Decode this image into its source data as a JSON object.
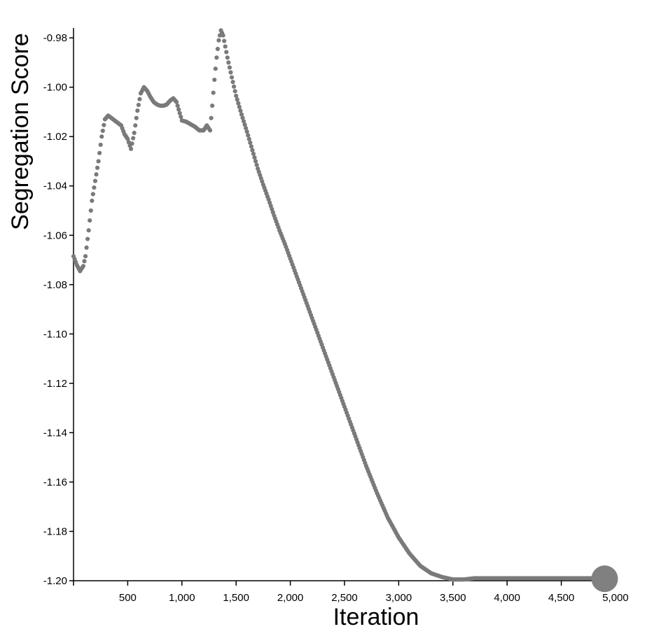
{
  "chart_data": {
    "type": "scatter",
    "title": "",
    "xlabel": "Iteration",
    "ylabel": "Segregation Score",
    "xlim": [
      0,
      5000
    ],
    "ylim": [
      -1.2,
      -0.976
    ],
    "xticks": [
      500,
      1000,
      1500,
      2000,
      2500,
      3000,
      3500,
      4000,
      4500,
      5000
    ],
    "xtick_labels": [
      "500",
      "1,000",
      "1,500",
      "2,000",
      "2,500",
      "3,000",
      "3,500",
      "4,000",
      "4,500",
      "5,000"
    ],
    "yticks": [
      -0.98,
      -1.0,
      -1.02,
      -1.04,
      -1.06,
      -1.08,
      -1.1,
      -1.12,
      -1.14,
      -1.16,
      -1.18,
      -1.2
    ],
    "ytick_labels": [
      "-0.98",
      "-1.00",
      "-1.02",
      "-1.04",
      "-1.06",
      "-1.08",
      "-1.10",
      "-1.12",
      "-1.14",
      "-1.16",
      "-1.18",
      "-1.20"
    ],
    "grid": false,
    "point_color": "#7a7a7a",
    "series": [
      {
        "points": [
          [
            0,
            -1.0685
          ],
          [
            30,
            -1.072
          ],
          [
            60,
            -1.0745
          ],
          [
            90,
            -1.0725
          ],
          [
            110,
            -1.0685
          ],
          [
            140,
            -1.058
          ],
          [
            170,
            -1.046
          ],
          [
            200,
            -1.038
          ],
          [
            230,
            -1.03
          ],
          [
            260,
            -1.02
          ],
          [
            290,
            -1.013
          ],
          [
            320,
            -1.0115
          ],
          [
            350,
            -1.0125
          ],
          [
            380,
            -1.0135
          ],
          [
            410,
            -1.0145
          ],
          [
            440,
            -1.0155
          ],
          [
            470,
            -1.019
          ],
          [
            500,
            -1.021
          ],
          [
            530,
            -1.025
          ],
          [
            560,
            -1.0185
          ],
          [
            590,
            -1.0095
          ],
          [
            620,
            -1.0025
          ],
          [
            650,
            -1.0
          ],
          [
            680,
            -1.0015
          ],
          [
            710,
            -1.004
          ],
          [
            740,
            -1.006
          ],
          [
            770,
            -1.007
          ],
          [
            800,
            -1.0075
          ],
          [
            830,
            -1.0075
          ],
          [
            860,
            -1.007
          ],
          [
            890,
            -1.0055
          ],
          [
            920,
            -1.0045
          ],
          [
            950,
            -1.006
          ],
          [
            980,
            -1.0105
          ],
          [
            1000,
            -1.0135
          ],
          [
            1040,
            -1.014
          ],
          [
            1080,
            -1.015
          ],
          [
            1120,
            -1.016
          ],
          [
            1160,
            -1.0175
          ],
          [
            1200,
            -1.0175
          ],
          [
            1230,
            -1.0155
          ],
          [
            1260,
            -1.0175
          ],
          [
            1280,
            -1.0075
          ],
          [
            1300,
            -0.997
          ],
          [
            1320,
            -0.988
          ],
          [
            1340,
            -0.981
          ],
          [
            1360,
            -0.977
          ],
          [
            1380,
            -0.979
          ],
          [
            1420,
            -0.988
          ],
          [
            1460,
            -0.996
          ],
          [
            1500,
            -1.0035
          ],
          [
            1550,
            -1.011
          ],
          [
            1600,
            -1.018
          ],
          [
            1650,
            -1.0255
          ],
          [
            1700,
            -1.033
          ],
          [
            1750,
            -1.0395
          ],
          [
            1800,
            -1.0455
          ],
          [
            1850,
            -1.052
          ],
          [
            1900,
            -1.058
          ],
          [
            1950,
            -1.0635
          ],
          [
            2000,
            -1.0695
          ],
          [
            2100,
            -1.0815
          ],
          [
            2200,
            -1.0935
          ],
          [
            2300,
            -1.1055
          ],
          [
            2400,
            -1.1175
          ],
          [
            2500,
            -1.1295
          ],
          [
            2600,
            -1.1415
          ],
          [
            2700,
            -1.1535
          ],
          [
            2800,
            -1.1645
          ],
          [
            2900,
            -1.1745
          ],
          [
            3000,
            -1.1825
          ],
          [
            3100,
            -1.189
          ],
          [
            3200,
            -1.194
          ],
          [
            3300,
            -1.197
          ],
          [
            3400,
            -1.1985
          ],
          [
            3500,
            -1.1995
          ],
          [
            3600,
            -1.1995
          ],
          [
            3700,
            -1.199
          ],
          [
            3800,
            -1.199
          ],
          [
            3900,
            -1.199
          ],
          [
            4000,
            -1.199
          ],
          [
            4100,
            -1.199
          ],
          [
            4200,
            -1.199
          ],
          [
            4300,
            -1.199
          ],
          [
            4400,
            -1.199
          ],
          [
            4500,
            -1.199
          ],
          [
            4600,
            -1.199
          ],
          [
            4700,
            -1.199
          ],
          [
            4800,
            -1.199
          ],
          [
            4900,
            -1.199
          ]
        ]
      }
    ],
    "end_marker": {
      "x": 4900,
      "y": -1.1992,
      "style": "large-dot"
    }
  }
}
